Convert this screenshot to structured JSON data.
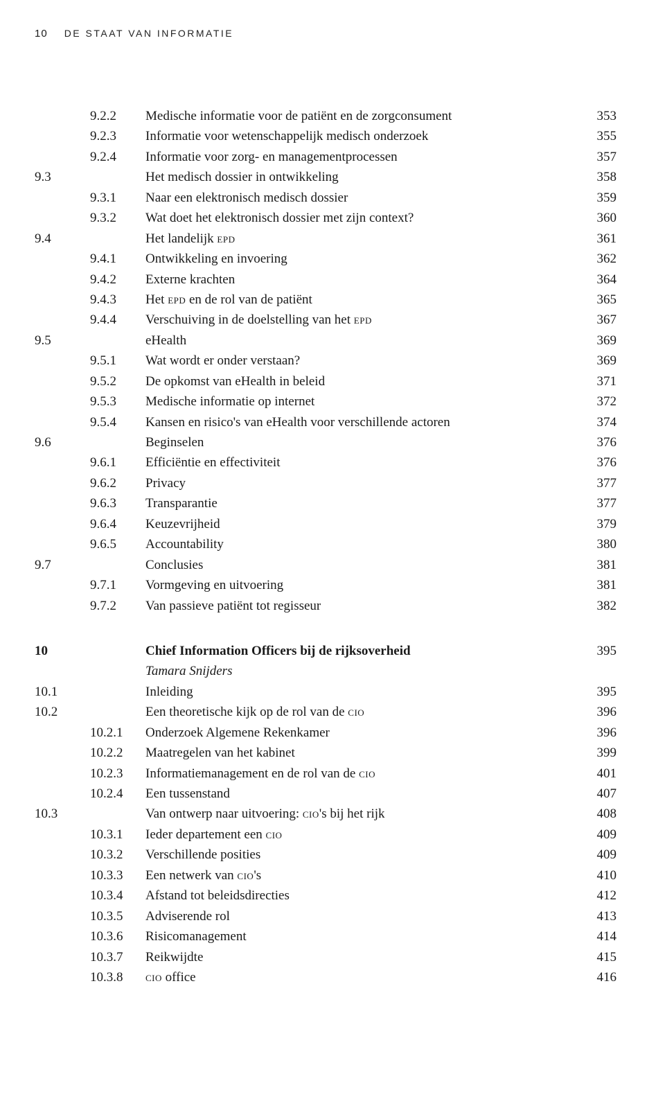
{
  "header": {
    "page_number": "10",
    "running_title": "DE STAAT VAN INFORMATIE"
  },
  "toc": {
    "rows": [
      {
        "num": "",
        "sub": "9.2.2",
        "title": "Medische informatie voor de patiënt en de zorgconsument",
        "page": "353"
      },
      {
        "num": "",
        "sub": "9.2.3",
        "title": "Informatie voor wetenschappelijk medisch onderzoek",
        "page": "355"
      },
      {
        "num": "",
        "sub": "9.2.4",
        "title": "Informatie voor zorg- en managementprocessen",
        "page": "357"
      },
      {
        "num": "9.3",
        "sub": "",
        "title": "Het medisch dossier in ontwikkeling",
        "page": "358"
      },
      {
        "num": "",
        "sub": "9.3.1",
        "title": "Naar een elektronisch medisch dossier",
        "page": "359"
      },
      {
        "num": "",
        "sub": "9.3.2",
        "title": "Wat doet het elektronisch dossier met zijn context?",
        "page": "360"
      },
      {
        "num": "9.4",
        "sub": "",
        "title_html": "Het landelijk <span class=\"smallcaps\">epd</span>",
        "page": "361"
      },
      {
        "num": "",
        "sub": "9.4.1",
        "title": "Ontwikkeling en invoering",
        "page": "362"
      },
      {
        "num": "",
        "sub": "9.4.2",
        "title": "Externe krachten",
        "page": "364"
      },
      {
        "num": "",
        "sub": "9.4.3",
        "title_html": "Het <span class=\"smallcaps\">epd</span> en de rol van de patiënt",
        "page": "365"
      },
      {
        "num": "",
        "sub": "9.4.4",
        "title_html": "Verschuiving in de doelstelling van het <span class=\"smallcaps\">epd</span>",
        "page": "367"
      },
      {
        "num": "9.5",
        "sub": "",
        "title": "eHealth",
        "page": "369"
      },
      {
        "num": "",
        "sub": "9.5.1",
        "title": "Wat wordt er onder verstaan?",
        "page": "369"
      },
      {
        "num": "",
        "sub": "9.5.2",
        "title": "De opkomst van eHealth in beleid",
        "page": "371"
      },
      {
        "num": "",
        "sub": "9.5.3",
        "title": "Medische informatie op internet",
        "page": "372"
      },
      {
        "num": "",
        "sub": "9.5.4",
        "title": "Kansen en risico's van eHealth voor verschillende actoren",
        "page": "374"
      },
      {
        "num": "9.6",
        "sub": "",
        "title": "Beginselen",
        "page": "376"
      },
      {
        "num": "",
        "sub": "9.6.1",
        "title": "Efficiëntie en effectiviteit",
        "page": "376"
      },
      {
        "num": "",
        "sub": "9.6.2",
        "title": "Privacy",
        "page": "377"
      },
      {
        "num": "",
        "sub": "9.6.3",
        "title": "Transparantie",
        "page": "377"
      },
      {
        "num": "",
        "sub": "9.6.4",
        "title": "Keuzevrijheid",
        "page": "379"
      },
      {
        "num": "",
        "sub": "9.6.5",
        "title": "Accountability",
        "page": "380"
      },
      {
        "num": "9.7",
        "sub": "",
        "title": "Conclusies",
        "page": "381"
      },
      {
        "num": "",
        "sub": "9.7.1",
        "title": "Vormgeving en uitvoering",
        "page": "381"
      },
      {
        "num": "",
        "sub": "9.7.2",
        "title": "Van passieve patiënt tot regisseur",
        "page": "382"
      }
    ]
  },
  "toc2": {
    "rows": [
      {
        "num": "10",
        "sub": "",
        "title": "Chief Information Officers bij de rijksoverheid",
        "page": "395",
        "bold": true
      },
      {
        "num": "",
        "sub": "",
        "title": "Tamara Snijders",
        "page": "",
        "italic": true
      },
      {
        "num": "10.1",
        "sub": "",
        "title": "Inleiding",
        "page": "395"
      },
      {
        "num": "10.2",
        "sub": "",
        "title_html": "Een theoretische kijk op de rol van de <span class=\"smallcaps\">cio</span>",
        "page": "396"
      },
      {
        "num": "",
        "sub": "10.2.1",
        "title": "Onderzoek Algemene Rekenkamer",
        "page": "396"
      },
      {
        "num": "",
        "sub": "10.2.2",
        "title": "Maatregelen van het kabinet",
        "page": "399"
      },
      {
        "num": "",
        "sub": "10.2.3",
        "title_html": "Informatiemanagement en de rol van de <span class=\"smallcaps\">cio</span>",
        "page": "401"
      },
      {
        "num": "",
        "sub": "10.2.4",
        "title": "Een tussenstand",
        "page": "407"
      },
      {
        "num": "10.3",
        "sub": "",
        "title_html": "Van ontwerp naar uitvoering: <span class=\"smallcaps\">cio</span>'s bij het rijk",
        "page": "408"
      },
      {
        "num": "",
        "sub": "10.3.1",
        "title_html": "Ieder departement een <span class=\"smallcaps\">cio</span>",
        "page": "409"
      },
      {
        "num": "",
        "sub": "10.3.2",
        "title": "Verschillende posities",
        "page": "409"
      },
      {
        "num": "",
        "sub": "10.3.3",
        "title_html": "Een netwerk van <span class=\"smallcaps\">cio</span>'s",
        "page": "410"
      },
      {
        "num": "",
        "sub": "10.3.4",
        "title": "Afstand tot beleidsdirecties",
        "page": "412"
      },
      {
        "num": "",
        "sub": "10.3.5",
        "title": "Adviserende rol",
        "page": "413"
      },
      {
        "num": "",
        "sub": "10.3.6",
        "title": "Risicomanagement",
        "page": "414"
      },
      {
        "num": "",
        "sub": "10.3.7",
        "title": "Reikwijdte",
        "page": "415"
      },
      {
        "num": "",
        "sub": "10.3.8",
        "title_html": "<span class=\"smallcaps\">cio</span> office",
        "page": "416"
      }
    ]
  }
}
